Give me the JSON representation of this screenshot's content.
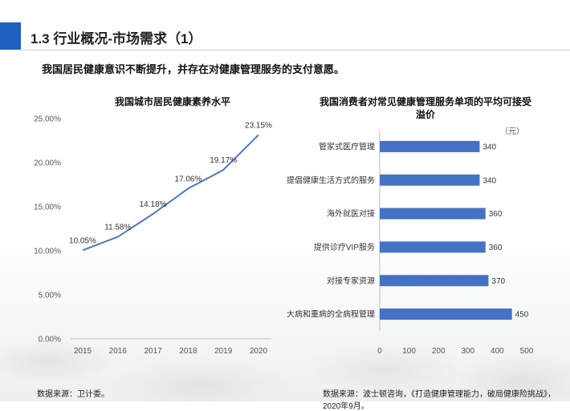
{
  "header": {
    "title": "1.3 行业概况-市场需求（1）",
    "subtitle": "我国居民健康意识不断提升，并存在对健康管理服务的支付意愿。"
  },
  "footer": {
    "left_source": "数据来源：卫计委。",
    "right_source": "数据来源：波士顿咨询，《打造健康管理能力，破局健康险挑战》，2020年9月。"
  },
  "chart_data": [
    {
      "type": "line",
      "title": "我国城市居民健康素养水平",
      "x": [
        "2015",
        "2016",
        "2017",
        "2018",
        "2019",
        "2020"
      ],
      "series": [
        {
          "values": [
            10.05,
            11.58,
            14.18,
            17.06,
            19.17,
            23.15
          ],
          "labels": [
            "10.05%",
            "11.58%",
            "14.18%",
            "17.06%",
            "19.17%",
            "23.15%"
          ]
        }
      ],
      "ylim": [
        0,
        25
      ],
      "yticks": [
        "0.00%",
        "5.00%",
        "10.00%",
        "15.00%",
        "20.00%",
        "25.00%"
      ],
      "line_color": "#4a78c2",
      "grid": false,
      "legend": false
    },
    {
      "type": "bar",
      "orientation": "horizontal",
      "title": "我国消费者对常见健康管理服务单项的平均可接受溢价",
      "unit": "（元）",
      "categories": [
        "管家式医疗管理",
        "提倡健康生活方式的服务",
        "海外就医对接",
        "提供诊疗VIP服务",
        "对接专家资源",
        "大病和重病的全病程管理"
      ],
      "values": [
        340,
        340,
        360,
        360,
        370,
        450
      ],
      "xlim": [
        0,
        500
      ],
      "xticks": [
        "0",
        "100",
        "200",
        "300",
        "400",
        "500"
      ],
      "bar_color": "#4472c4",
      "grid": false,
      "legend": false
    }
  ]
}
